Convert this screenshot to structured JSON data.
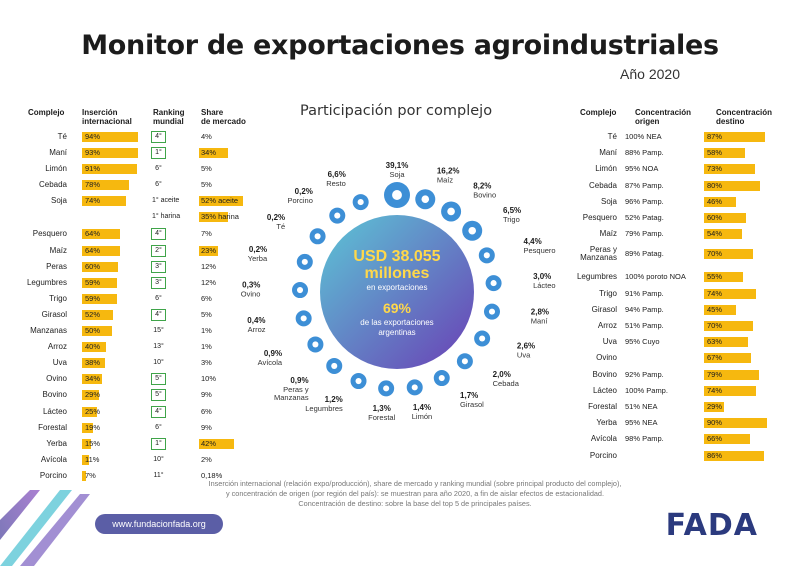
{
  "title": "Monitor de exportaciones agroindustriales",
  "year": "Año 2020",
  "subtitle": "Participación por complejo",
  "center": {
    "amount": "USD 38.055",
    "unit": "millones",
    "note": "en exportaciones",
    "pct": "69%",
    "pct_note1": "de las exportaciones",
    "pct_note2": "argentinas"
  },
  "left_headers": {
    "complejo": "Complejo",
    "insercion1": "Inserción",
    "insercion2": "internacional",
    "ranking1": "Ranking",
    "ranking2": "mundial",
    "share1": "Share",
    "share2": "de mercado"
  },
  "right_headers": {
    "complejo": "Complejo",
    "origen1": "Concentración",
    "origen2": "origen",
    "destino1": "Concentración",
    "destino2": "destino"
  },
  "footnote": {
    "line1": "Inserción internacional (relación expo/producción), share de mercado y ranking mundial (sobre principal producto del complejo),",
    "line2": "y concentración de origen (por región del país): se muestran para año 2020, a fin de aislar efectos de estacionalidad.",
    "line3": "Concentración de destino: sobre la base del top 5 de principales países."
  },
  "url": "www.fundacionfada.org",
  "logo": "FADA",
  "colors": {
    "bar": "#f6b80f",
    "rank_border": "#3fa449",
    "icon": "#3d8fd6",
    "gradient_start": "#5cc7d6",
    "gradient_end": "#6a3fb5"
  },
  "chart_data": [
    {
      "type": "bar",
      "title": "Inserción internacional",
      "categories": [
        "Té",
        "Maní",
        "Limón",
        "Cebada",
        "Soja",
        "Pesquero",
        "Maíz",
        "Peras",
        "Legumbres",
        "Trigo",
        "Girasol",
        "Manzanas",
        "Arroz",
        "Uva",
        "Ovino",
        "Bovino",
        "Lácteo",
        "Forestal",
        "Yerba",
        "Avícola",
        "Porcino"
      ],
      "labels": [
        "94%",
        "93%",
        "91%",
        "78%",
        "74%",
        "64%",
        "64%",
        "60%",
        "59%",
        "59%",
        "52%",
        "50%",
        "40%",
        "38%",
        "34%",
        "29%",
        "25%",
        "19%",
        "15%",
        "11%",
        "7%"
      ],
      "values": [
        94,
        93,
        91,
        78,
        74,
        64,
        64,
        60,
        59,
        59,
        52,
        50,
        40,
        38,
        34,
        29,
        25,
        19,
        15,
        11,
        7
      ],
      "ranking": [
        {
          "label": "4°",
          "boxed": true
        },
        {
          "label": "1°",
          "boxed": true
        },
        {
          "label": "6°",
          "boxed": false
        },
        {
          "label": "6°",
          "boxed": false
        },
        {
          "label": "1° aceite",
          "boxed": false
        },
        {
          "label": "4°",
          "boxed": true
        },
        {
          "label": "2°",
          "boxed": true
        },
        {
          "label": "3°",
          "boxed": true
        },
        {
          "label": "3°",
          "boxed": true
        },
        {
          "label": "6°",
          "boxed": false
        },
        {
          "label": "4°",
          "boxed": true
        },
        {
          "label": "15°",
          "boxed": false
        },
        {
          "label": "13°",
          "boxed": false
        },
        {
          "label": "10°",
          "boxed": false
        },
        {
          "label": "5°",
          "boxed": true
        },
        {
          "label": "5°",
          "boxed": true
        },
        {
          "label": "4°",
          "boxed": true
        },
        {
          "label": "6°",
          "boxed": false
        },
        {
          "label": "1°",
          "boxed": true
        },
        {
          "label": "10°",
          "boxed": false
        },
        {
          "label": "11°",
          "boxed": false
        }
      ],
      "soja_harina": {
        "ranking": "1° harina",
        "share_label": "35% harina",
        "share": 35
      },
      "share_labels": [
        "4%",
        "34%",
        "5%",
        "5%",
        "52% aceite",
        "7%",
        "23%",
        "12%",
        "12%",
        "6%",
        "5%",
        "1%",
        "1%",
        "3%",
        "10%",
        "9%",
        "6%",
        "9%",
        "42%",
        "2%",
        "0,18%"
      ],
      "share_values": [
        4,
        34,
        5,
        5,
        52,
        7,
        23,
        12,
        12,
        6,
        5,
        1,
        1,
        3,
        10,
        9,
        6,
        9,
        42,
        2,
        0.18
      ]
    },
    {
      "type": "pie",
      "title": "Participación por complejo",
      "slices": [
        {
          "name": "Soja",
          "label": "39,1%",
          "value": 39.1
        },
        {
          "name": "Maíz",
          "label": "16,2%",
          "value": 16.2
        },
        {
          "name": "Bovino",
          "label": "8,2%",
          "value": 8.2
        },
        {
          "name": "Trigo",
          "label": "6,5%",
          "value": 6.5
        },
        {
          "name": "Pesquero",
          "label": "4,4%",
          "value": 4.4
        },
        {
          "name": "Lácteo",
          "label": "3,0%",
          "value": 3.0
        },
        {
          "name": "Maní",
          "label": "2,8%",
          "value": 2.8
        },
        {
          "name": "Uva",
          "label": "2,6%",
          "value": 2.6
        },
        {
          "name": "Cebada",
          "label": "2,0%",
          "value": 2.0
        },
        {
          "name": "Girasol",
          "label": "1,7%",
          "value": 1.7
        },
        {
          "name": "Limón",
          "label": "1,4%",
          "value": 1.4
        },
        {
          "name": "Forestal",
          "label": "1,3%",
          "value": 1.3
        },
        {
          "name": "Legumbres",
          "label": "1,2%",
          "value": 1.2
        },
        {
          "name": "Peras y Manzanas",
          "label": "0,9%",
          "value": 0.9
        },
        {
          "name": "Avícola",
          "label": "0,9%",
          "value": 0.9
        },
        {
          "name": "Arroz",
          "label": "0,4%",
          "value": 0.4
        },
        {
          "name": "Ovino",
          "label": "0,3%",
          "value": 0.3
        },
        {
          "name": "Yerba",
          "label": "0,2%",
          "value": 0.2
        },
        {
          "name": "Té",
          "label": "0,2%",
          "value": 0.2
        },
        {
          "name": "Porcino",
          "label": "0,2%",
          "value": 0.2
        },
        {
          "name": "Resto",
          "label": "6,6%",
          "value": 6.6
        }
      ]
    },
    {
      "type": "bar",
      "title": "Concentración destino",
      "categories": [
        "Té",
        "Maní",
        "Limón",
        "Cebada",
        "Soja",
        "Pesquero",
        "Maíz",
        "Peras y Manzanas",
        "Legumbres",
        "Trigo",
        "Girasol",
        "Arroz",
        "Uva",
        "Ovino",
        "Bovino",
        "Lácteo",
        "Forestal",
        "Yerba",
        "Avícola",
        "Porcino"
      ],
      "origin": [
        "100% NEA",
        "88% Pamp.",
        "95% NOA",
        "87% Pamp.",
        "96% Pamp.",
        "52% Patag.",
        "79% Pamp.",
        "89% Patag.",
        "100% poroto NOA",
        "91% Pamp.",
        "94% Pamp.",
        "51% Pamp.",
        "95% Cuyo",
        "",
        "92% Pamp.",
        "100% Pamp.",
        "51% NEA",
        "95% NEA",
        "98% Pamp.",
        ""
      ],
      "labels": [
        "87%",
        "58%",
        "73%",
        "80%",
        "46%",
        "60%",
        "54%",
        "70%",
        "55%",
        "74%",
        "45%",
        "70%",
        "63%",
        "67%",
        "79%",
        "74%",
        "29%",
        "90%",
        "66%",
        "86%"
      ],
      "values": [
        87,
        58,
        73,
        80,
        46,
        60,
        54,
        70,
        55,
        74,
        45,
        70,
        63,
        67,
        79,
        74,
        29,
        90,
        66,
        86
      ]
    }
  ]
}
